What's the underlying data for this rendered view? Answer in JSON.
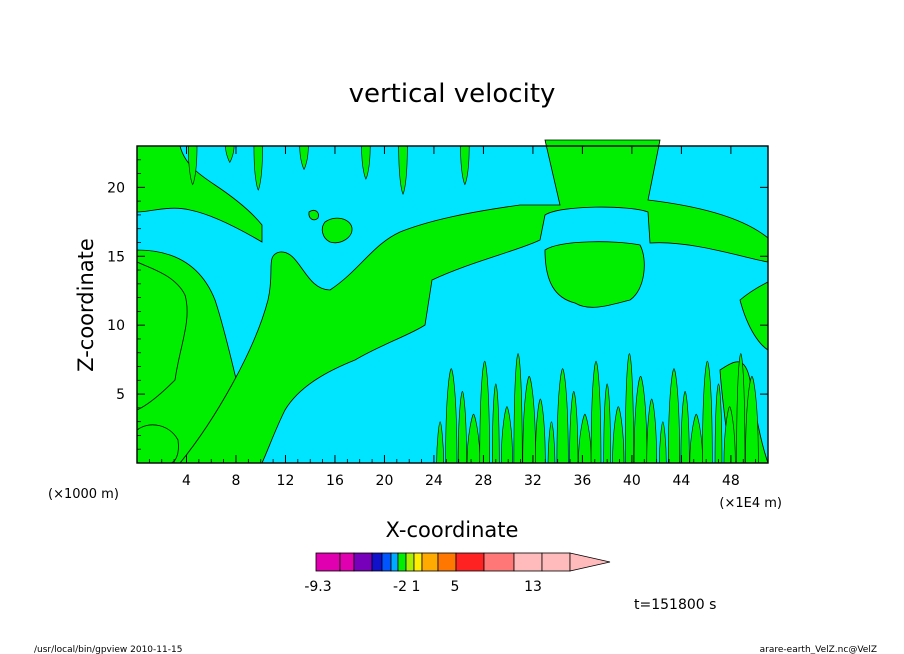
{
  "chart_data": {
    "type": "contour",
    "title": "vertical velocity",
    "xlabel": "X-coordinate",
    "ylabel": "Z-coordinate",
    "x_unit_left": "(×1000 m)",
    "x_unit_right": "(×1E4 m)",
    "xlim": [
      0,
      51
    ],
    "ylim": [
      0,
      23
    ],
    "x_ticks": [
      4,
      8,
      12,
      16,
      20,
      24,
      28,
      32,
      36,
      40,
      44,
      48
    ],
    "y_ticks": [
      5,
      10,
      15,
      20
    ],
    "time_label": "t=151800 s",
    "colors": {
      "positive": "#00ee00",
      "negative": "#00e5ff"
    },
    "colorbar": {
      "segments": [
        "#e000b0",
        "#e000b0",
        "#7700bb",
        "#1111cc",
        "#0055ff",
        "#00aaff",
        "#00ee00",
        "#aaee00",
        "#ffee00",
        "#ffaa00",
        "#ff7700",
        "#ff2222",
        "#ff7777",
        "#ffbbbb",
        "#ffbbbb"
      ],
      "labels": [
        "-9.3",
        "-2",
        "1",
        "5",
        "13"
      ]
    }
  },
  "footer": {
    "left": "/usr/local/bin/gpview   2010-11-15",
    "right": "arare-earth_VelZ.nc@VelZ"
  }
}
